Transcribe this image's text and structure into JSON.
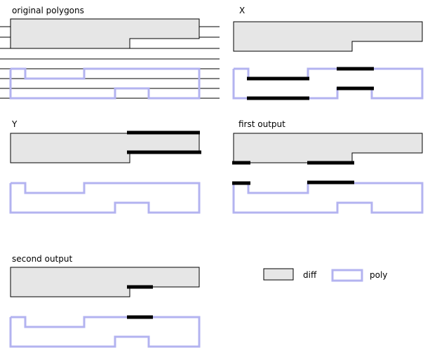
{
  "colors": {
    "diff_fill": "#e6e6e6",
    "diff_stroke": "#000000",
    "poly_stroke": "#b3b3f0",
    "segment": "#000000"
  },
  "panels": {
    "original": {
      "title": "original polygons"
    },
    "x": {
      "title": "X"
    },
    "y": {
      "title": "Y"
    },
    "first": {
      "title": "first output"
    },
    "second": {
      "title": "second output"
    }
  },
  "legend": {
    "diff_label": "diff",
    "poly_label": "poly"
  }
}
